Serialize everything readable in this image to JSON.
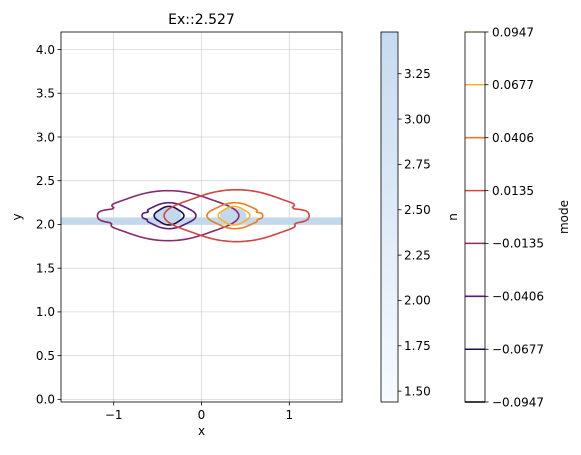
{
  "chart_data": {
    "type": "contour",
    "title": "Ex::2.527",
    "xlabel": "x",
    "ylabel": "y",
    "xlim": [
      -1.6,
      1.6
    ],
    "ylim": [
      -0.03,
      4.2
    ],
    "grid": true,
    "xticks": [
      -1,
      0,
      1
    ],
    "xtick_labels": [
      "−1",
      "0",
      "1"
    ],
    "yticks": [
      0.0,
      0.5,
      1.0,
      1.5,
      2.0,
      2.5,
      3.0,
      3.5,
      4.0
    ],
    "ytick_labels": [
      "0.0",
      "0.5",
      "1.0",
      "1.5",
      "2.0",
      "2.5",
      "3.0",
      "3.5",
      "4.0"
    ],
    "waveguide": {
      "slab": {
        "y_min": 2.0,
        "y_max": 2.08,
        "color": "#c2d8ec"
      },
      "core_lobes": [
        {
          "cx": -0.38,
          "cy": 2.1,
          "rx": 0.15,
          "ry": 0.09,
          "color": "#c2d8ec"
        },
        {
          "cx": 0.36,
          "cy": 2.1,
          "rx": 0.15,
          "ry": 0.09,
          "color": "#c2d8ec"
        }
      ]
    },
    "contours": [
      {
        "level": -0.0135,
        "color": "#8b2a6b",
        "cx": -0.38,
        "cy": 2.1,
        "rx": 0.76,
        "ry": 0.27,
        "notched": true
      },
      {
        "level": -0.0406,
        "color": "#5a1a7a",
        "cx": -0.37,
        "cy": 2.1,
        "rx": 0.29,
        "ry": 0.14,
        "notched": true
      },
      {
        "level": -0.0677,
        "color": "#1f0c48",
        "cx": -0.37,
        "cy": 2.1,
        "rx": 0.16,
        "ry": 0.1,
        "notched": false
      },
      {
        "level": 0.0135,
        "color": "#d24644",
        "cx": 0.4,
        "cy": 2.1,
        "rx": 0.78,
        "ry": 0.28,
        "notched": true
      },
      {
        "level": 0.0406,
        "color": "#ec7d1c",
        "cx": 0.38,
        "cy": 2.1,
        "rx": 0.3,
        "ry": 0.14,
        "notched": true
      },
      {
        "level": 0.0677,
        "color": "#f7b22a",
        "cx": 0.37,
        "cy": 2.1,
        "rx": 0.17,
        "ry": 0.1,
        "notched": false
      }
    ],
    "colorbar_n": {
      "label": "n",
      "range": [
        1.44,
        3.48
      ],
      "ticks": [
        1.5,
        1.75,
        2.0,
        2.25,
        2.5,
        2.75,
        3.0,
        3.25
      ],
      "tick_labels": [
        "1.50",
        "1.75",
        "2.00",
        "2.25",
        "2.50",
        "2.75",
        "3.00",
        "3.25"
      ],
      "color_low": "#f7fbff",
      "color_high": "#c6dbef"
    },
    "colorbar_mode": {
      "label": "mode",
      "levels": [
        -0.0947,
        -0.0677,
        -0.0406,
        -0.0135,
        0.0135,
        0.0406,
        0.0677,
        0.0947
      ],
      "tick_labels": [
        "−0.0947",
        "−0.0677",
        "−0.0406",
        "−0.0135",
        "0.0135",
        "0.0406",
        "0.0677",
        "0.0947"
      ],
      "colors": [
        "#000004",
        "#1f0c48",
        "#5a1a7a",
        "#8b2a6b",
        "#d24644",
        "#ec7d1c",
        "#f7b22a",
        "#fcffa4"
      ]
    }
  }
}
